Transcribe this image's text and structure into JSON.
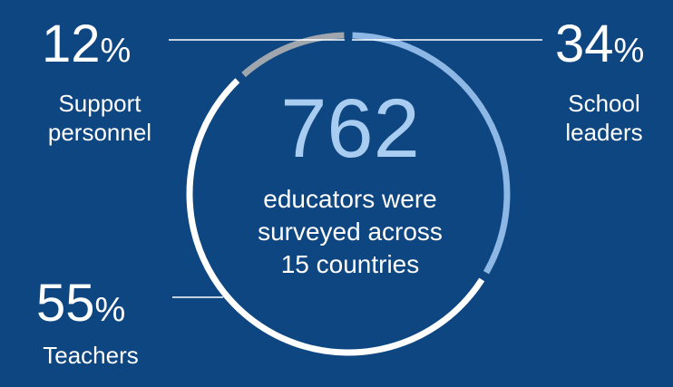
{
  "chart_data": {
    "type": "pie",
    "total": "762",
    "caption": [
      "educators were",
      "surveyed across",
      "15 countries"
    ],
    "slices": [
      {
        "label": [
          "Support",
          "personnel"
        ],
        "value": 12,
        "display": "12",
        "color": "#a0a6ad"
      },
      {
        "label": [
          "School",
          "leaders"
        ],
        "value": 34,
        "display": "34",
        "color": "#8db8e6"
      },
      {
        "label": [
          "Teachers"
        ],
        "value": 55,
        "display": "55",
        "color": "#ffffff"
      }
    ],
    "percent_symbol": "%"
  }
}
